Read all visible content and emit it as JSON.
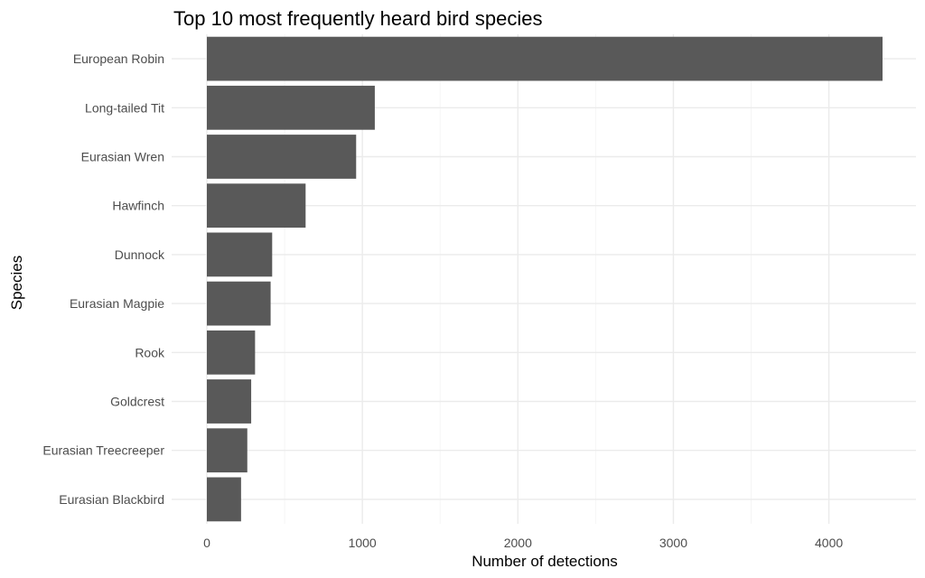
{
  "chart_data": {
    "type": "bar",
    "orientation": "horizontal",
    "title": "Top 10 most frequently heard bird species",
    "xlabel": "Number of detections",
    "ylabel": "Species",
    "categories": [
      "European Robin",
      "Long-tailed Tit",
      "Eurasian Wren",
      "Hawfinch",
      "Dunnock",
      "Eurasian Magpie",
      "Rook",
      "Goldcrest",
      "Eurasian Treecreeper",
      "Eurasian Blackbird"
    ],
    "values": [
      4345,
      1080,
      960,
      635,
      420,
      410,
      310,
      285,
      260,
      220
    ],
    "xlim": [
      0,
      4500
    ],
    "xticks": [
      0,
      1000,
      2000,
      3000,
      4000
    ],
    "xtick_labels": [
      "0",
      "1000",
      "2000",
      "3000",
      "4000"
    ],
    "grid": true,
    "bar_color": "#595959"
  }
}
